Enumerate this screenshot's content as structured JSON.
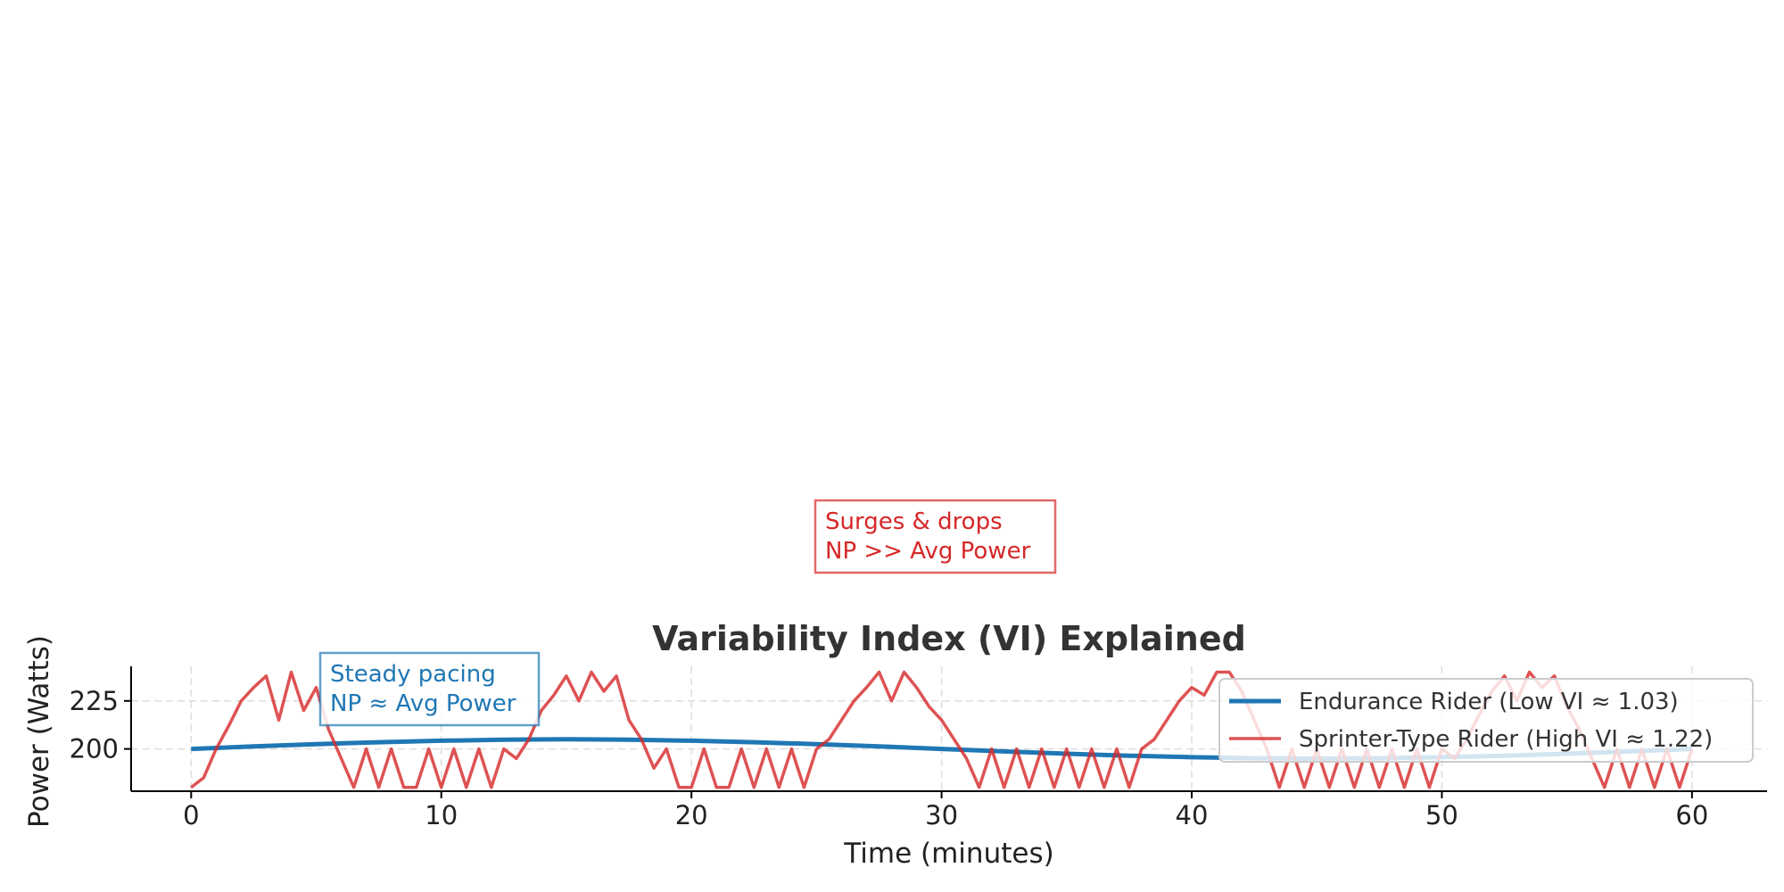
{
  "chart_data": {
    "type": "line",
    "title": "Variability Index (VI) Explained",
    "xlabel": "Time (minutes)",
    "ylabel": "Power (Watts)",
    "xlim": [
      -2.4,
      63
    ],
    "ylim": [
      178,
      243
    ],
    "xticks": [
      0,
      10,
      20,
      30,
      40,
      50,
      60
    ],
    "yticks": [
      200,
      225
    ],
    "grid": true,
    "legend_position": "right",
    "series": [
      {
        "name": "Endurance Rider (Low VI ≈ 1.03)",
        "color": "#1f77b4",
        "x_step": 2.5,
        "values": [
          200,
          201.3,
          202.5,
          203.5,
          204.3,
          204.8,
          205,
          204.8,
          204.3,
          203.5,
          202.5,
          201.3,
          200,
          198.7,
          197.5,
          196.5,
          195.7,
          195.2,
          195,
          195.2,
          195.7,
          196.5,
          197.5,
          198.7,
          200
        ]
      },
      {
        "name": "Sprinter-Type Rider (High VI ≈ 1.22)",
        "color": "#d62728",
        "x_step": 0.5,
        "values": [
          180,
          185,
          200,
          212,
          225,
          232,
          238,
          215,
          240,
          220,
          232,
          210,
          195,
          180,
          200,
          180,
          200,
          180,
          180,
          200,
          180,
          200,
          180,
          200,
          180,
          200,
          195,
          205,
          220,
          228,
          238,
          225,
          240,
          230,
          238,
          215,
          205,
          190,
          200,
          180,
          180,
          200,
          180,
          180,
          200,
          180,
          200,
          180,
          200,
          180,
          200,
          205,
          215,
          225,
          232,
          240,
          225,
          240,
          232,
          222,
          215,
          205,
          195,
          180,
          200,
          180,
          200,
          180,
          200,
          180,
          200,
          180,
          200,
          180,
          200,
          180,
          200,
          205,
          215,
          225,
          232,
          228,
          240,
          240,
          230,
          215,
          200,
          180,
          200,
          180,
          200,
          180,
          200,
          180,
          200,
          180,
          200,
          180,
          200,
          180,
          200,
          195,
          205,
          218,
          230,
          238,
          225,
          240,
          232,
          238,
          222,
          210,
          195,
          180,
          200,
          180,
          200,
          180,
          200,
          180,
          200
        ]
      }
    ],
    "annotations": [
      {
        "lines": [
          "Steady pacing",
          "NP ≈ Avg Power"
        ],
        "color": "#1f77b4"
      },
      {
        "lines": [
          "Surges & drops",
          "NP >> Avg Power"
        ],
        "color": "#d62728"
      }
    ]
  }
}
